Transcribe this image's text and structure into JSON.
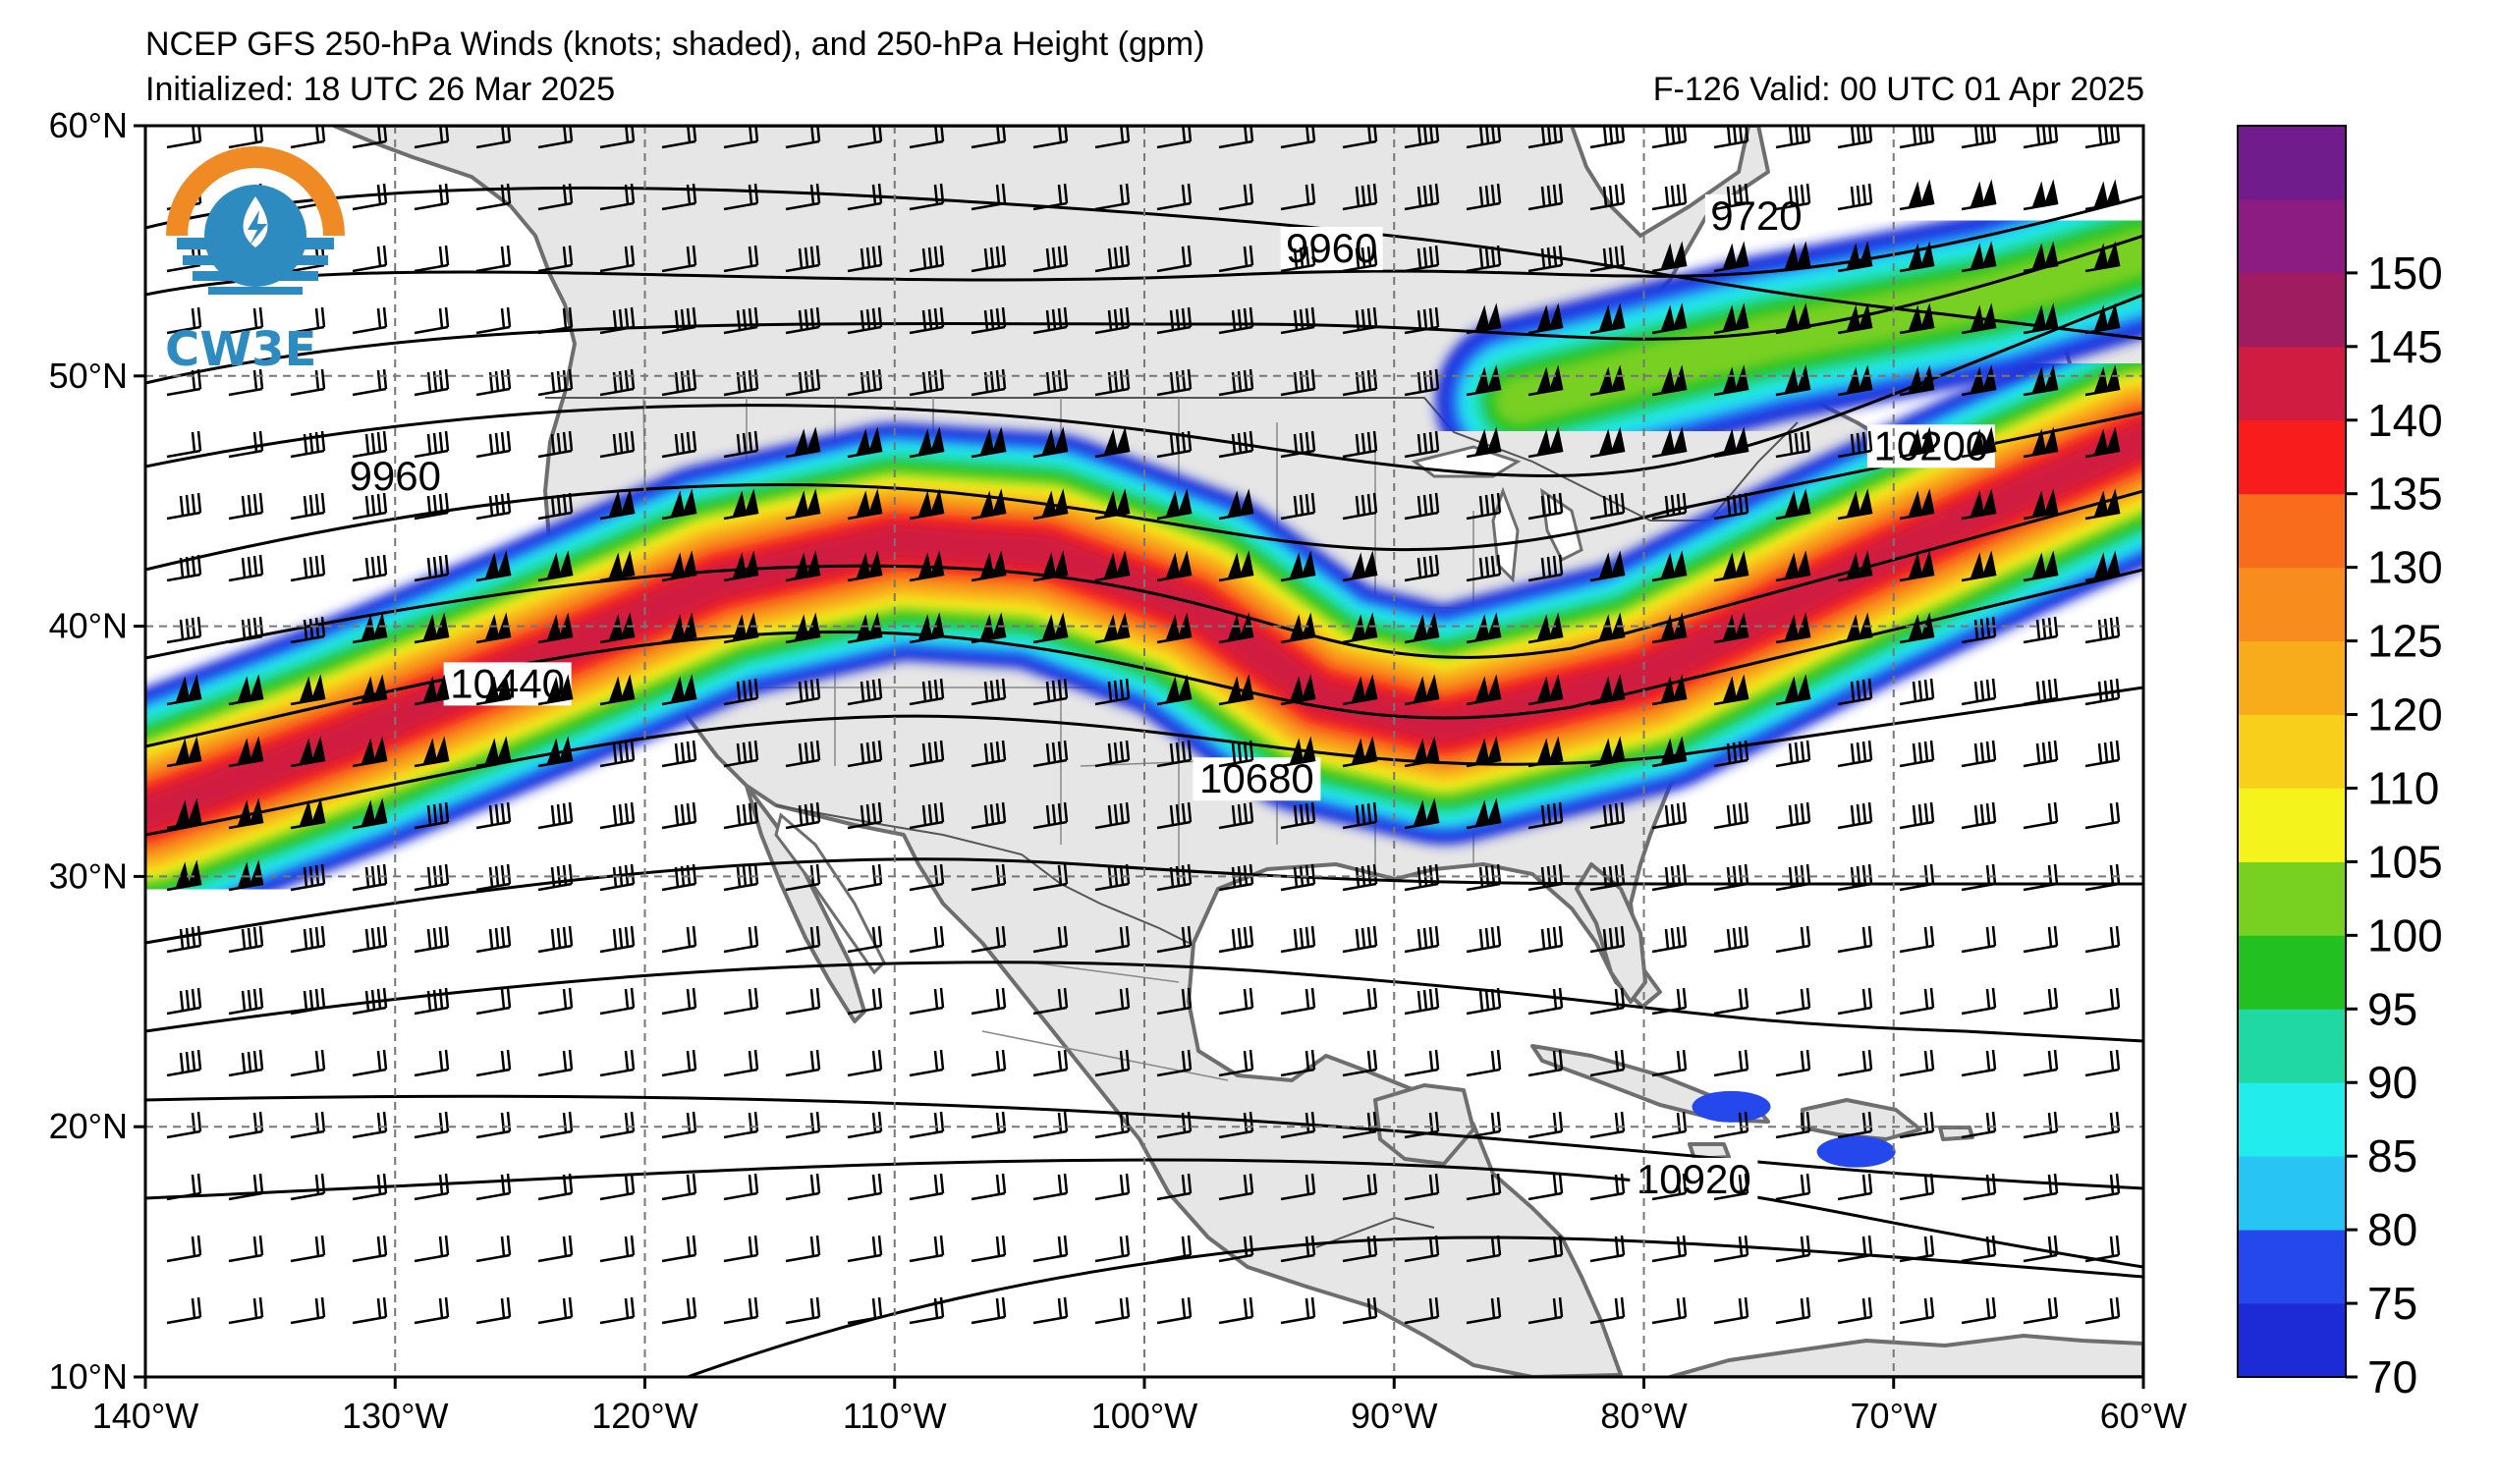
{
  "header": {
    "title": "NCEP GFS 250-hPa Winds (knots; shaded), and 250-hPa Height (gpm)",
    "initialized": "Initialized: 18 UTC 26 Mar 2025",
    "valid": "F-126  Valid: 00 UTC 01 Apr 2025"
  },
  "logo": {
    "text": "CW3E",
    "icon": "cw3e-logo-icon"
  },
  "axes": {
    "lon_range": [
      -140,
      -60
    ],
    "lat_range": [
      10,
      60
    ],
    "lon_labels": [
      "140°W",
      "130°W",
      "120°W",
      "110°W",
      "100°W",
      "90°W",
      "80°W",
      "70°W",
      "60°W"
    ],
    "lat_labels": [
      "60°N",
      "50°N",
      "40°N",
      "30°N",
      "20°N",
      "10°N"
    ],
    "grid": "dashed"
  },
  "colorbar": {
    "levels": [
      "70",
      "75",
      "80",
      "85",
      "90",
      "95",
      "100",
      "105",
      "110",
      "120",
      "125",
      "130",
      "135",
      "140",
      "145",
      "150"
    ],
    "colors": [
      "#1c2bd6",
      "#2448ec",
      "#27c4f4",
      "#23ecec",
      "#20d8a2",
      "#22c020",
      "#78d020",
      "#f4f41c",
      "#f8d01c",
      "#f8ac1c",
      "#f88c1c",
      "#f86c1c",
      "#f81c1c",
      "#d01c40",
      "#a01c60",
      "#8c1c80",
      "#701c8c"
    ],
    "top_color": "#701c8c"
  },
  "height_contours": [
    {
      "label": "9720",
      "lon": -75.5,
      "lat": 56.0
    },
    {
      "label": "9960",
      "lon": -92.5,
      "lat": 54.7
    },
    {
      "label": "9960",
      "lon": -130.0,
      "lat": 45.6
    },
    {
      "label": "10200",
      "lon": -68.5,
      "lat": 46.8
    },
    {
      "label": "10440",
      "lon": -125.5,
      "lat": 37.3
    },
    {
      "label": "10680",
      "lon": -95.5,
      "lat": 33.5
    },
    {
      "label": "10920",
      "lon": -78.0,
      "lat": 17.5
    }
  ],
  "jet_streams": [
    {
      "name": "",
      "path": [
        [
          -140,
          32.5
        ],
        [
          -132,
          35.5
        ],
        [
          -124,
          38.8
        ],
        [
          -117,
          41.8
        ],
        [
          -110,
          43.4
        ],
        [
          -104,
          43.0
        ],
        [
          -98,
          40.8
        ],
        [
          -93,
          37.2
        ],
        [
          -88,
          36.0
        ],
        [
          -80,
          38.0
        ],
        [
          -72,
          42.0
        ],
        [
          -66,
          44.8
        ],
        [
          -60,
          47.5
        ]
      ],
      "speed_kt": 140
    },
    {
      "name": "",
      "path": [
        [
          -85,
          49.0
        ],
        [
          -75,
          51.5
        ],
        [
          -66,
          53.2
        ],
        [
          -60,
          55.0
        ]
      ],
      "speed_kt": 100
    }
  ],
  "caribbean_cores": [
    {
      "lon": -71.5,
      "lat": 19.0,
      "speed_kt": 75
    },
    {
      "lon": -76.5,
      "lat": 20.8,
      "speed_kt": 75
    }
  ]
}
